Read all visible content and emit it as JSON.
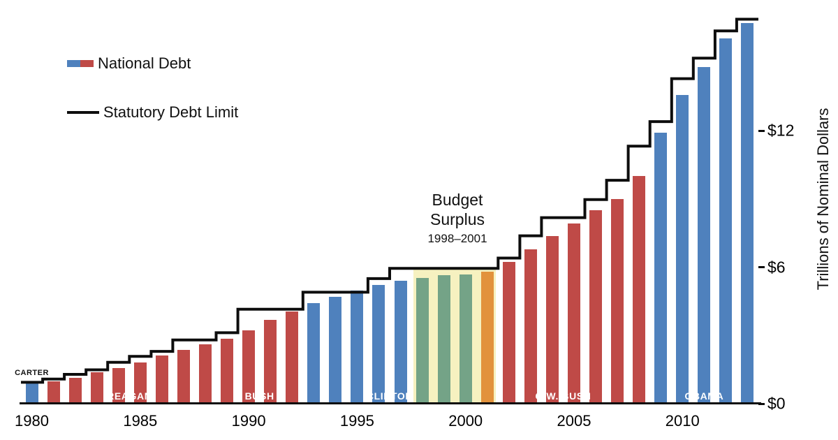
{
  "legend": {
    "national_debt_label": "National Debt",
    "debt_limit_label": "Statutory Debt Limit"
  },
  "annotation": {
    "line1": "Budget",
    "line2": "Surplus",
    "line3": "1998–2001"
  },
  "y_axis": {
    "title": "Trillions of Nominal Dollars",
    "ticks": [
      {
        "label": "$12",
        "value": 12
      },
      {
        "label": "$6",
        "value": 6
      },
      {
        "label": "$0",
        "value": 0
      }
    ]
  },
  "x_axis": {
    "ticks": [
      {
        "label": "1980",
        "year": 1980
      },
      {
        "label": "1985",
        "year": 1985
      },
      {
        "label": "1990",
        "year": 1990
      },
      {
        "label": "1995",
        "year": 1995
      },
      {
        "label": "2000",
        "year": 2000
      },
      {
        "label": "2005",
        "year": 2005
      },
      {
        "label": "2010",
        "year": 2010
      }
    ]
  },
  "colors": {
    "democrat_bar": "#4f81bd",
    "republican_bar": "#bf4a47",
    "limit_line": "#0d0d0d",
    "surplus_band": "rgba(240,232,150,0.6)",
    "surplus_democrat_bar": "#74a387",
    "surplus_republican_bar": "#e2923c"
  },
  "chart_data": {
    "type": "bar",
    "title": "",
    "xlabel": "",
    "ylabel": "Trillions of Nominal Dollars",
    "ylim": [
      0,
      17.5
    ],
    "grid": false,
    "legend_position": "top-left",
    "years": [
      1980,
      1981,
      1982,
      1983,
      1984,
      1985,
      1986,
      1987,
      1988,
      1989,
      1990,
      1991,
      1992,
      1993,
      1994,
      1995,
      1996,
      1997,
      1998,
      1999,
      2000,
      2001,
      2002,
      2003,
      2004,
      2005,
      2006,
      2007,
      2008,
      2009,
      2010,
      2011,
      2012,
      2013
    ],
    "series": [
      {
        "name": "National Debt",
        "type": "bar",
        "values": [
          0.91,
          0.99,
          1.14,
          1.38,
          1.57,
          1.82,
          2.12,
          2.35,
          2.6,
          2.86,
          3.23,
          3.67,
          4.06,
          4.41,
          4.69,
          4.97,
          5.22,
          5.41,
          5.53,
          5.66,
          5.67,
          5.81,
          6.23,
          6.78,
          7.38,
          7.93,
          8.51,
          9.01,
          10.02,
          11.91,
          13.56,
          14.79,
          16.07,
          16.74
        ]
      },
      {
        "name": "Statutory Debt Limit",
        "type": "step-line",
        "values": [
          0.94,
          1.08,
          1.29,
          1.49,
          1.82,
          2.08,
          2.3,
          2.8,
          2.8,
          3.12,
          4.15,
          4.15,
          4.15,
          4.9,
          4.9,
          4.9,
          5.5,
          5.95,
          5.95,
          5.95,
          5.95,
          5.95,
          6.4,
          7.38,
          8.18,
          8.18,
          8.97,
          9.82,
          11.32,
          12.4,
          14.29,
          15.19,
          16.39,
          16.9
        ]
      }
    ],
    "presidents": [
      {
        "name": "CARTER",
        "start": 1980,
        "end": 1980,
        "party": "democrat",
        "label_position": "above"
      },
      {
        "name": "REAGAN",
        "start": 1981,
        "end": 1988,
        "party": "republican",
        "label_position": "inside"
      },
      {
        "name": "BUSH",
        "start": 1989,
        "end": 1992,
        "party": "republican",
        "label_position": "inside"
      },
      {
        "name": "CLINTON",
        "start": 1993,
        "end": 2000,
        "party": "democrat",
        "label_position": "inside"
      },
      {
        "name": "G.W. BUSH",
        "start": 2001,
        "end": 2008,
        "party": "republican",
        "label_position": "inside"
      },
      {
        "name": "OBAMA",
        "start": 2009,
        "end": 2013,
        "party": "democrat",
        "label_position": "inside"
      }
    ],
    "surplus_region": {
      "start": 1998,
      "end": 2001,
      "label": "Budget Surplus 1998–2001",
      "band_top_value": 5.95
    }
  }
}
